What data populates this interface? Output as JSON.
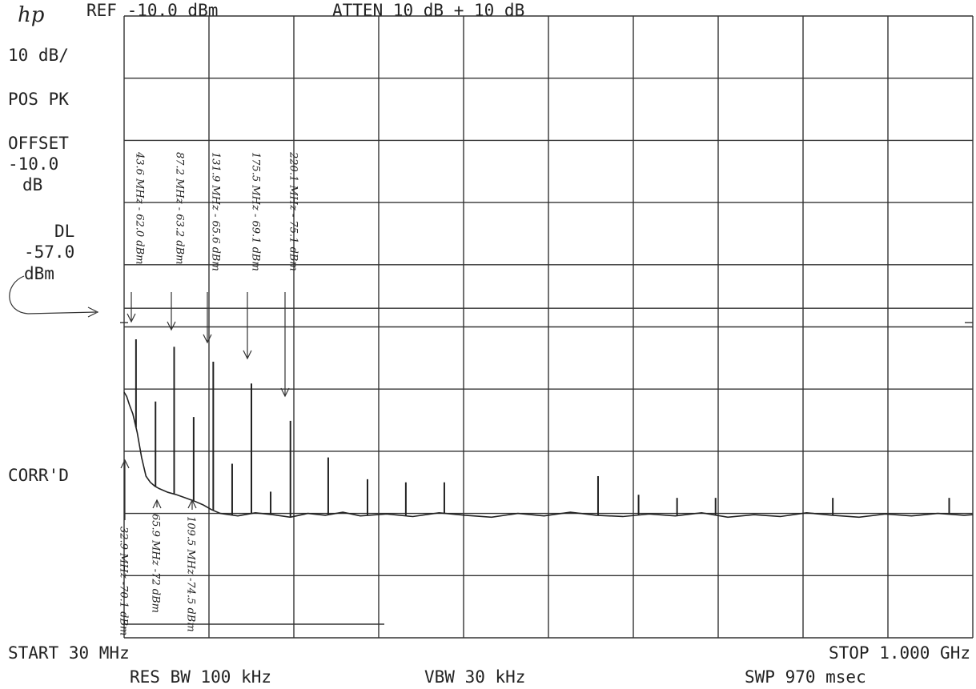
{
  "chart_data": {
    "type": "spectrum",
    "logo": "hp",
    "header": [
      "REF -10.0 dBm",
      "ATTEN 10 dB + 10 dB"
    ],
    "side_labels": [
      "10 dB/",
      "POS PK",
      "OFFSET",
      "-10.0",
      "dB",
      "DL"
    ],
    "display_line": {
      "value": -57,
      "label": "-57.0"
    },
    "display_line_unit": "dBm",
    "corr_label": "CORR'D",
    "footer": [
      "START 30 MHz",
      "STOP 1.000 GHz",
      "RES BW 100 kHz",
      "VBW 30 kHz",
      "SWP 970 msec"
    ],
    "xlim": [
      30,
      1000
    ],
    "ylim": [
      -110,
      -10
    ],
    "xticks": [
      30,
      127,
      224,
      321,
      418,
      515,
      612,
      709,
      806,
      903,
      1000
    ],
    "yticks": [
      -110,
      -100,
      -90,
      -80,
      -70,
      -60,
      -50,
      -40,
      -30,
      -20,
      -10
    ],
    "grid": true,
    "color": "#222222",
    "x": [
      30,
      33,
      36,
      40,
      45,
      50,
      55,
      60,
      65,
      70,
      80,
      90,
      100,
      110,
      120,
      130,
      140,
      160,
      180,
      200,
      220,
      240,
      260,
      280,
      300,
      330,
      360,
      390,
      420,
      450,
      480,
      510,
      540,
      570,
      600,
      630,
      660,
      690,
      720,
      750,
      780,
      810,
      840,
      870,
      900,
      930,
      960,
      990,
      1000
    ],
    "values": [
      -70.5,
      -71.2,
      -72.5,
      -74,
      -77,
      -81,
      -84,
      -85,
      -85.6,
      -86,
      -86.6,
      -87,
      -87.5,
      -88,
      -88.6,
      -89.4,
      -90,
      -90.4,
      -89.9,
      -90.2,
      -90.6,
      -90,
      -90.3,
      -89.8,
      -90.4,
      -90.1,
      -90.5,
      -89.9,
      -90.3,
      -90.6,
      -90,
      -90.4,
      -89.8,
      -90.3,
      -90.5,
      -90.1,
      -90.4,
      -89.9,
      -90.6,
      -90.2,
      -90.5,
      -89.9,
      -90.3,
      -90.6,
      -90.1,
      -90.4,
      -90,
      -90.3,
      -90.2
    ],
    "peaks_x": [
      43.6,
      65.9,
      87.2,
      109.5,
      131.9,
      153.5,
      175.5,
      197.5,
      220.1,
      263.3,
      308.2,
      352,
      396,
      571.7,
      618,
      662,
      706,
      840,
      973
    ],
    "peaks": [
      -62.0,
      -72,
      -63.2,
      -74.5,
      -65.6,
      -82,
      -69.1,
      -86.5,
      -75.1,
      -81,
      -84.5,
      -85,
      -85,
      -84,
      -87,
      -87.5,
      -87.5,
      -87.5,
      -87.5
    ],
    "annotations": [
      "43.6 MHz - 62.0 dBm",
      "87.2 MHz - 63.2 dBm",
      "131.9 MHz -  65.6 dBm",
      "175.5 MHz - 69.1 dBm",
      "220.1 MHz - 75.1 dBm",
      "32.9 MHz -70.1 dBm",
      "65.9 MHz -72 dBm",
      "109.5 MHz -74.5 dBm"
    ]
  }
}
